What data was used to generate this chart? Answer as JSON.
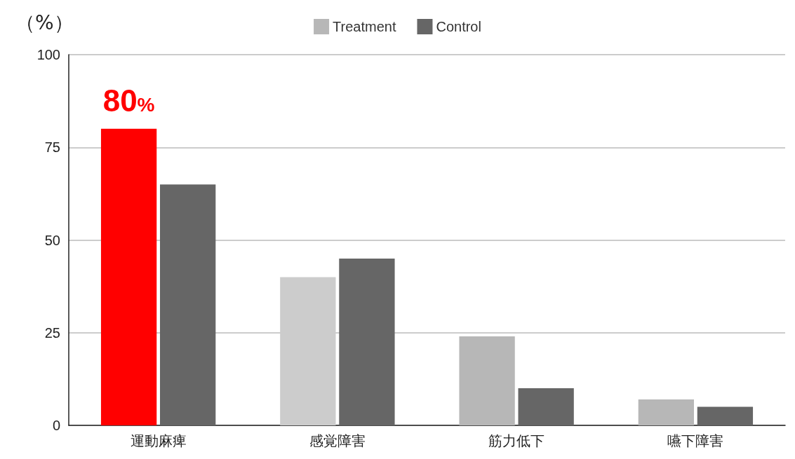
{
  "chart_data": {
    "type": "bar",
    "ylabel": "（%）",
    "categories": [
      "運動麻痺",
      "感覚障害",
      "筋力低下",
      "嚥下障害"
    ],
    "series": [
      {
        "name": "Treatment",
        "color": "#b7b7b7",
        "colors": [
          "#ff0000",
          "#cccccc",
          "#b7b7b7",
          "#b7b7b7"
        ],
        "values": [
          80,
          40,
          24,
          7
        ]
      },
      {
        "name": "Control",
        "color": "#666666",
        "values": [
          65,
          45,
          10,
          5
        ]
      }
    ],
    "annotations": [
      {
        "text": "80%",
        "x": "運動麻痺",
        "y": 80
      }
    ],
    "ylim": [
      0,
      100
    ],
    "yticks": [
      0,
      25,
      50,
      75,
      100
    ],
    "grid": "y",
    "legend": "top"
  }
}
